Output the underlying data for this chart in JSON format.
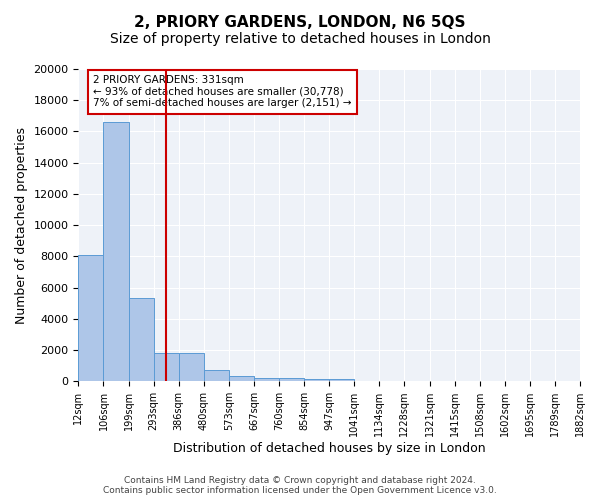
{
  "title": "2, PRIORY GARDENS, LONDON, N6 5QS",
  "subtitle": "Size of property relative to detached houses in London",
  "xlabel": "Distribution of detached houses by size in London",
  "ylabel": "Number of detached properties",
  "bar_values": [
    8100,
    16600,
    5300,
    1800,
    1800,
    700,
    330,
    230,
    200,
    170,
    150,
    0,
    0,
    0,
    0,
    0,
    0,
    0,
    0,
    0
  ],
  "bin_labels": [
    "12sqm",
    "106sqm",
    "199sqm",
    "293sqm",
    "386sqm",
    "480sqm",
    "573sqm",
    "667sqm",
    "760sqm",
    "854sqm",
    "947sqm",
    "1041sqm",
    "1134sqm",
    "1228sqm",
    "1321sqm",
    "1415sqm",
    "1508sqm",
    "1602sqm",
    "1695sqm",
    "1789sqm",
    "1882sqm"
  ],
  "bar_color": "#aec6e8",
  "bar_edge_color": "#5b9bd5",
  "bg_color": "#eef2f8",
  "annotation_text": "2 PRIORY GARDENS: 331sqm\n← 93% of detached houses are smaller (30,778)\n7% of semi-detached houses are larger (2,151) →",
  "vline_x": 3.5,
  "vline_color": "#cc0000",
  "annotation_box_edge": "#cc0000",
  "ylim": [
    0,
    20000
  ],
  "yticks": [
    0,
    2000,
    4000,
    6000,
    8000,
    10000,
    12000,
    14000,
    16000,
    18000,
    20000
  ],
  "footnote": "Contains HM Land Registry data © Crown copyright and database right 2024.\nContains public sector information licensed under the Open Government Licence v3.0.",
  "title_fontsize": 11,
  "subtitle_fontsize": 10,
  "xlabel_fontsize": 9,
  "ylabel_fontsize": 9
}
